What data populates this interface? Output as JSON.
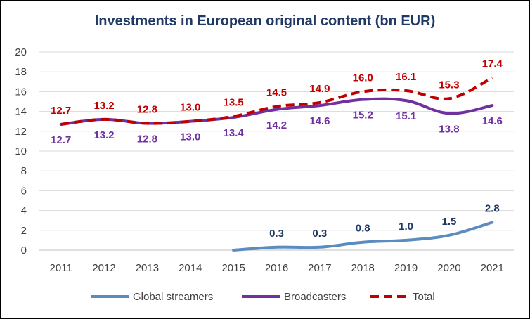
{
  "chart_data": {
    "type": "line",
    "title": "Investments in European original content (bn EUR)",
    "xlabel": "",
    "ylabel": "",
    "ylim": [
      0,
      20
    ],
    "yticks": [
      "0",
      "2",
      "4",
      "6",
      "8",
      "10",
      "12",
      "14",
      "16",
      "18",
      "20"
    ],
    "grid": true,
    "legend_position": "bottom",
    "categories": [
      "2011",
      "2012",
      "2013",
      "2014",
      "2015",
      "2016",
      "2017",
      "2018",
      "2019",
      "2020",
      "2021"
    ],
    "series": [
      {
        "name": "Global streamers",
        "color": "#5b8cc0",
        "style": "solid",
        "values": [
          null,
          null,
          null,
          null,
          0,
          0.3,
          0.3,
          0.8,
          1.0,
          1.5,
          2.8
        ],
        "labels": [
          null,
          null,
          null,
          null,
          null,
          "0.3",
          "0.3",
          "0.8",
          "1.0",
          "1.5",
          "2.8"
        ],
        "label_color": "#1f3864",
        "label_position": "above"
      },
      {
        "name": "Broadcasters",
        "color": "#7030a0",
        "style": "solid",
        "values": [
          12.7,
          13.2,
          12.8,
          13.0,
          13.4,
          14.2,
          14.6,
          15.2,
          15.1,
          13.8,
          14.6
        ],
        "labels": [
          "12.7",
          "13.2",
          "12.8",
          "13.0",
          "13.4",
          "14.2",
          "14.6",
          "15.2",
          "15.1",
          "13.8",
          "14.6"
        ],
        "label_color": "#7030a0",
        "label_position": "below"
      },
      {
        "name": "Total",
        "color": "#c00000",
        "style": "dashed",
        "values": [
          12.7,
          13.2,
          12.8,
          13.0,
          13.5,
          14.5,
          14.9,
          16.0,
          16.1,
          15.3,
          17.4
        ],
        "labels": [
          "12.7",
          "13.2",
          "12.8",
          "13.0",
          "13.5",
          "14.5",
          "14.9",
          "16.0",
          "16.1",
          "15.3",
          "17.4"
        ],
        "label_color": "#c00000",
        "label_position": "above"
      }
    ]
  }
}
